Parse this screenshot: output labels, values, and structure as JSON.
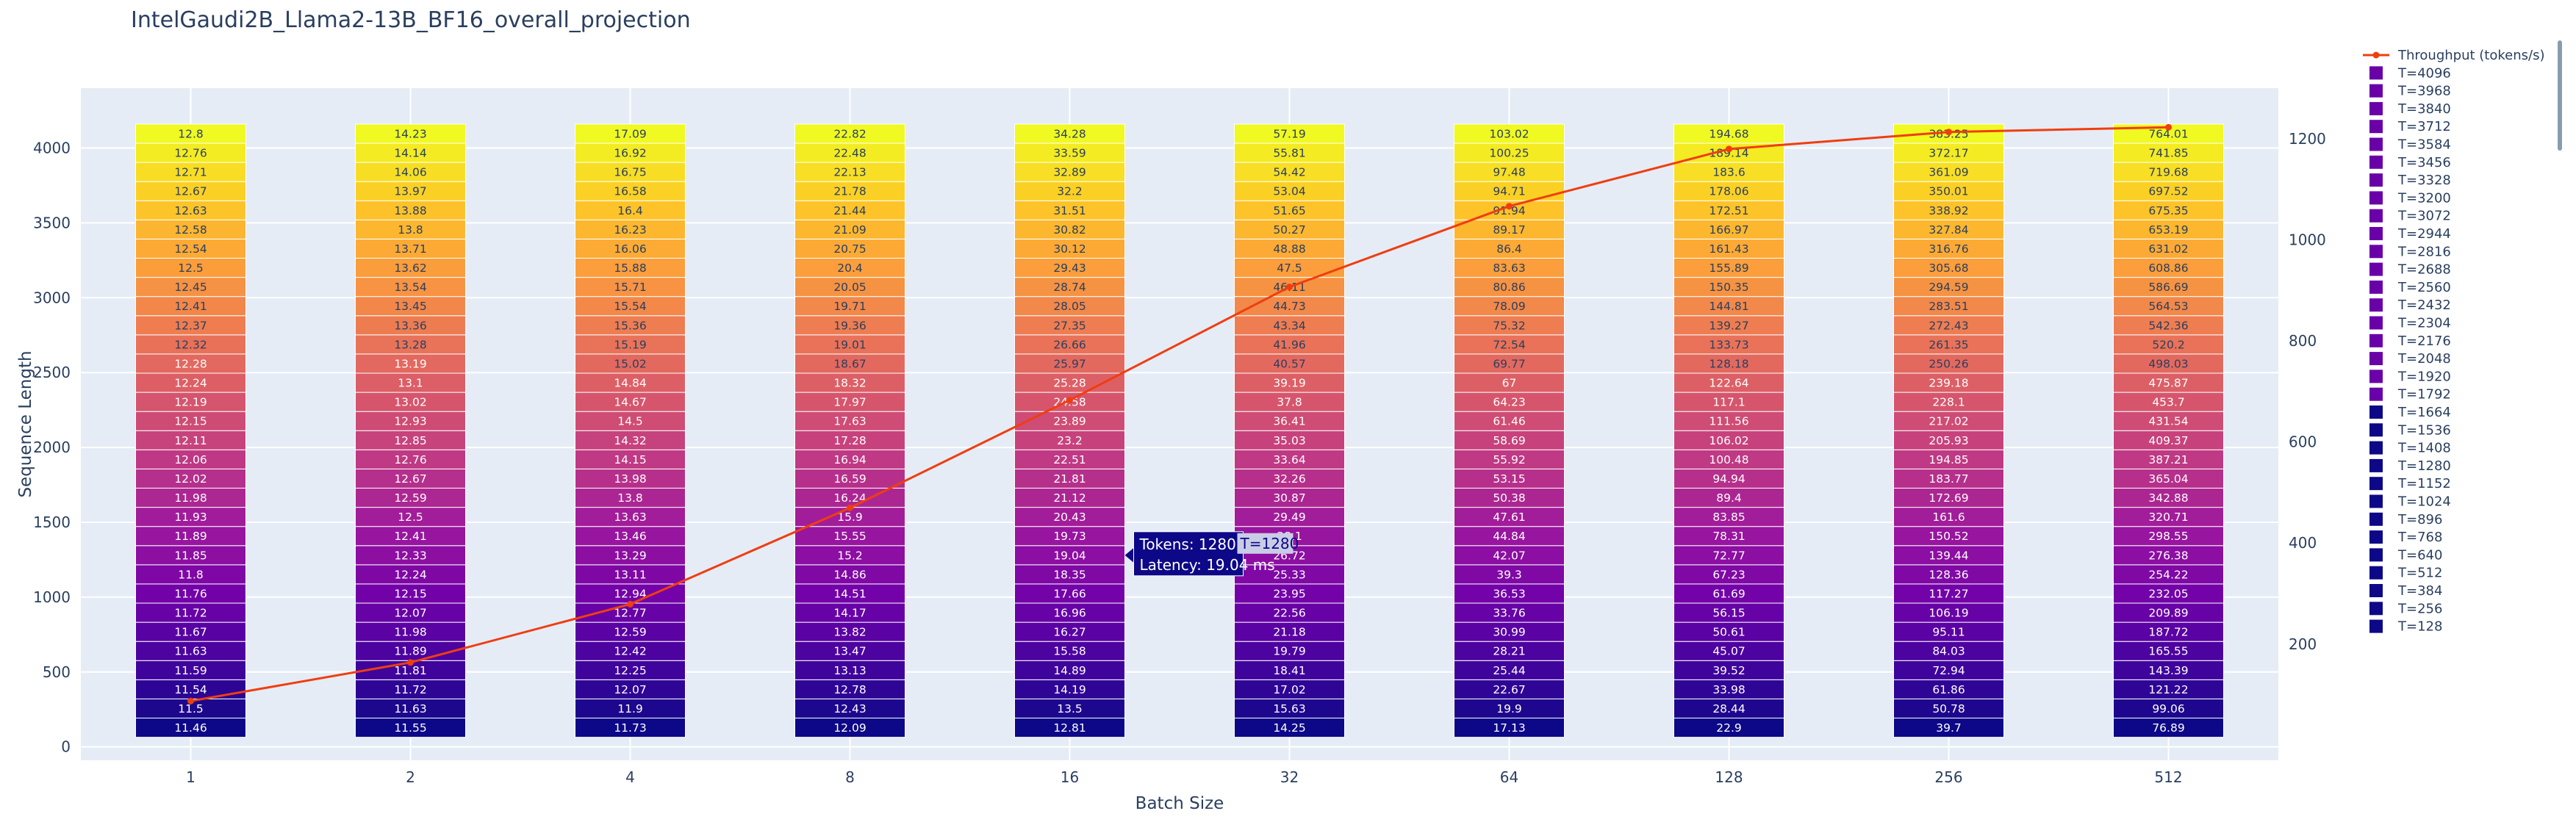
{
  "chart_data": {
    "type": "bar",
    "title": "IntelGaudi2B_Llama2-13B_BF16_overall_projection",
    "xlabel": "Batch Size",
    "ylabel": "Sequence Length",
    "categories": [
      "1",
      "2",
      "4",
      "8",
      "16",
      "32",
      "64",
      "128",
      "256",
      "512"
    ],
    "yticks": [
      0,
      500,
      1000,
      1500,
      2000,
      2500,
      3000,
      3500,
      4000
    ],
    "y2ticks": [
      200,
      400,
      600,
      800,
      1000,
      1200
    ],
    "ylim": [
      -90,
      4400
    ],
    "y2lim": [
      -30,
      1300
    ],
    "tokens": [
      128,
      256,
      384,
      512,
      640,
      768,
      896,
      1024,
      1152,
      1280,
      1408,
      1536,
      1664,
      1792,
      1920,
      2048,
      2176,
      2304,
      2432,
      2560,
      2688,
      2816,
      2944,
      3072,
      3200,
      3328,
      3456,
      3584,
      3712,
      3840,
      3968,
      4096
    ],
    "latency_ms": [
      [
        11.46,
        11.5,
        11.54,
        11.59,
        11.63,
        11.67,
        11.72,
        11.76,
        11.8,
        11.85,
        11.89,
        11.93,
        11.98,
        12.02,
        12.06,
        12.11,
        12.15,
        12.19,
        12.24,
        12.28,
        12.32,
        12.37,
        12.41,
        12.45,
        12.5,
        12.54,
        12.58,
        12.63,
        12.67,
        12.71,
        12.76,
        12.8
      ],
      [
        11.55,
        11.63,
        11.72,
        11.81,
        11.89,
        11.98,
        12.07,
        12.15,
        12.24,
        12.33,
        12.41,
        12.5,
        12.59,
        12.67,
        12.76,
        12.85,
        12.93,
        13.02,
        13.1,
        13.19,
        13.28,
        13.36,
        13.45,
        13.54,
        13.62,
        13.71,
        13.8,
        13.88,
        13.97,
        14.06,
        14.14,
        14.23
      ],
      [
        11.73,
        11.9,
        12.07,
        12.25,
        12.42,
        12.59,
        12.77,
        12.94,
        13.11,
        13.29,
        13.46,
        13.63,
        13.8,
        13.98,
        14.15,
        14.32,
        14.5,
        14.67,
        14.84,
        15.02,
        15.19,
        15.36,
        15.54,
        15.71,
        15.88,
        16.06,
        16.23,
        16.4,
        16.58,
        16.75,
        16.92,
        17.09
      ],
      [
        12.09,
        12.43,
        12.78,
        13.13,
        13.47,
        13.82,
        14.17,
        14.51,
        14.86,
        15.2,
        15.55,
        15.9,
        16.24,
        16.59,
        16.94,
        17.28,
        17.63,
        17.97,
        18.32,
        18.67,
        19.01,
        19.36,
        19.71,
        20.05,
        20.4,
        20.75,
        21.09,
        21.44,
        21.78,
        22.13,
        22.48,
        22.82
      ],
      [
        12.81,
        13.5,
        14.19,
        14.89,
        15.58,
        16.27,
        16.96,
        17.66,
        18.35,
        19.04,
        19.73,
        20.43,
        21.12,
        21.81,
        22.51,
        23.2,
        23.89,
        24.58,
        25.28,
        25.97,
        26.66,
        27.35,
        28.05,
        28.74,
        29.43,
        30.12,
        30.82,
        31.51,
        32.2,
        32.89,
        33.59,
        34.28
      ],
      [
        14.25,
        15.63,
        17.02,
        18.41,
        19.79,
        21.18,
        22.56,
        23.95,
        25.33,
        26.72,
        28.1,
        29.49,
        30.87,
        32.26,
        33.64,
        35.03,
        36.41,
        37.8,
        39.19,
        40.57,
        41.96,
        43.34,
        44.73,
        46.11,
        47.5,
        48.88,
        50.27,
        51.65,
        53.04,
        54.42,
        55.81,
        57.19
      ],
      [
        17.13,
        19.9,
        22.67,
        25.44,
        28.21,
        30.99,
        33.76,
        36.53,
        39.3,
        42.07,
        44.84,
        47.61,
        50.38,
        53.15,
        55.92,
        58.69,
        61.46,
        64.23,
        67.0,
        69.77,
        72.54,
        75.32,
        78.09,
        80.86,
        83.63,
        86.4,
        89.17,
        91.94,
        94.71,
        97.48,
        100.25,
        103.02
      ],
      [
        22.9,
        28.44,
        33.98,
        39.52,
        45.07,
        50.61,
        56.15,
        61.69,
        67.23,
        72.77,
        78.31,
        83.85,
        89.4,
        94.94,
        100.48,
        106.02,
        111.56,
        117.1,
        122.64,
        128.18,
        133.73,
        139.27,
        144.81,
        150.35,
        155.89,
        161.43,
        166.97,
        172.51,
        178.06,
        183.6,
        189.14,
        194.68
      ],
      [
        39.7,
        50.78,
        61.86,
        72.94,
        84.03,
        95.11,
        106.19,
        117.27,
        128.36,
        139.44,
        150.52,
        161.6,
        172.69,
        183.77,
        194.85,
        205.93,
        217.02,
        228.1,
        239.18,
        250.26,
        261.35,
        272.43,
        283.51,
        294.59,
        305.68,
        316.76,
        327.84,
        338.92,
        350.01,
        361.09,
        372.17,
        383.25
      ],
      [
        76.89,
        99.06,
        121.22,
        143.39,
        165.55,
        187.72,
        209.89,
        232.05,
        254.22,
        276.38,
        298.55,
        320.71,
        342.88,
        365.04,
        387.21,
        409.37,
        431.54,
        453.7,
        475.87,
        498.03,
        520.2,
        542.36,
        564.53,
        586.69,
        608.86,
        631.02,
        653.19,
        675.35,
        697.52,
        719.68,
        741.85,
        764.01
      ]
    ],
    "series": [
      {
        "name": "Throughput (tokens/s)",
        "type": "line",
        "color": "#ef3e0f",
        "values": [
          87.26,
          163.6,
          279.0,
          469.5,
          682.6,
          906.7,
          1066.4,
          1179.6,
          1213.2,
          1222.6
        ]
      }
    ],
    "legend": {
      "placement": "right",
      "entries": [
        "Throughput (tokens/s)",
        "T=4096",
        "T=3968",
        "T=3840",
        "T=3712",
        "T=3584",
        "T=3456",
        "T=3328",
        "T=3200",
        "T=3072",
        "T=2944",
        "T=2816",
        "T=2688",
        "T=2560",
        "T=2432",
        "T=2304",
        "T=2176",
        "T=2048",
        "T=1920",
        "T=1792",
        "T=1664",
        "T=1536",
        "T=1408",
        "T=1280",
        "T=1152",
        "T=1024",
        "T=896",
        "T=768",
        "T=640",
        "T=512",
        "T=384",
        "T=256",
        "T=128"
      ]
    },
    "tooltip": {
      "tokens_line": "Tokens: 1280",
      "latency_line": "Latency: 19.04 ms",
      "trace_tag": "T=1280",
      "batch": "16",
      "token": 1280
    },
    "grid": true,
    "colors": {
      "plot_bg": "#e5ecf6",
      "gridline": "#ffffff",
      "colorscale": [
        "#0d0887",
        "#46039f",
        "#7201a8",
        "#9c179e",
        "#bd3786",
        "#d8576b",
        "#ed7953",
        "#fb9f3a",
        "#fdca26",
        "#f0f921"
      ]
    }
  }
}
